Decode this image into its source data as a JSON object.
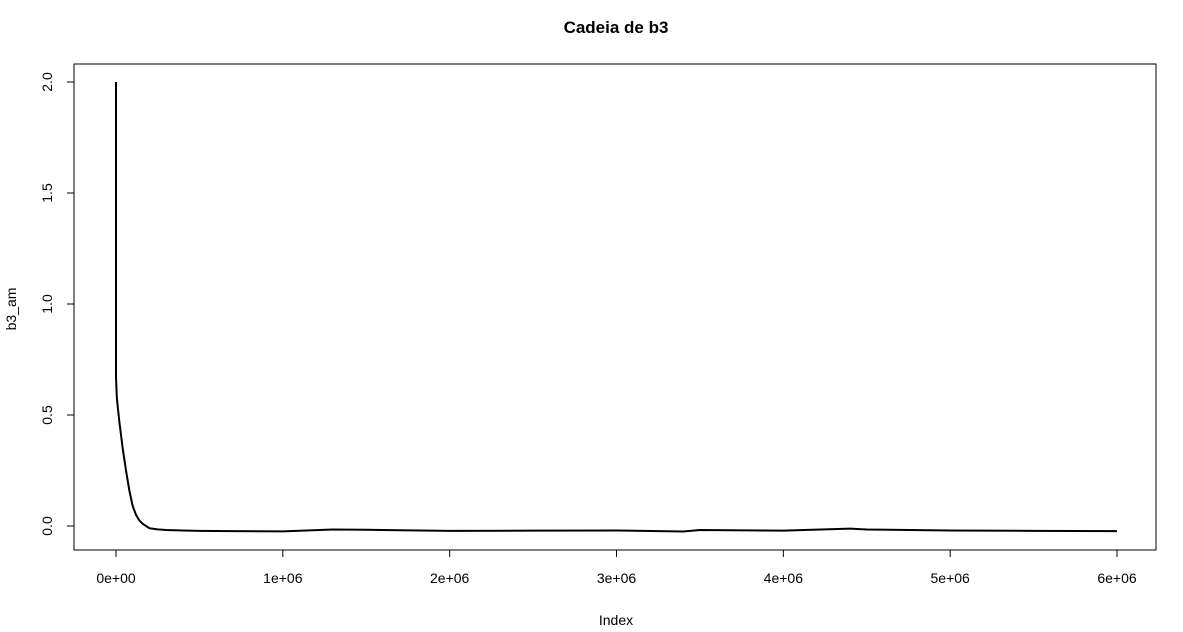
{
  "chart_data": {
    "type": "line",
    "title": "Cadeia de b3",
    "xlabel": "Index",
    "ylabel": "b3_am",
    "xlim": [
      0,
      6000000
    ],
    "ylim": [
      -0.1,
      2.1
    ],
    "x_ticks": [
      0,
      1000000,
      2000000,
      3000000,
      4000000,
      5000000,
      6000000
    ],
    "x_tick_labels": [
      "0e+00",
      "1e+06",
      "2e+06",
      "3e+06",
      "4e+06",
      "5e+06",
      "6e+06"
    ],
    "y_ticks": [
      0.0,
      0.5,
      1.0,
      1.5,
      2.0
    ],
    "y_tick_labels": [
      "0.0",
      "0.5",
      "1.0",
      "1.5",
      "2.0"
    ],
    "grid": false,
    "legend": "none",
    "line_color": "#000000",
    "series": [
      {
        "x": [
          0,
          1,
          5000,
          10000,
          20000,
          40000,
          60000,
          80000,
          100000,
          120000,
          140000,
          160000,
          180000,
          200000,
          250000,
          300000,
          400000,
          500000,
          700000,
          1000000,
          1300000,
          1500000,
          2000000,
          2500000,
          3000000,
          3400000,
          3500000,
          4000000,
          4400000,
          4500000,
          5000000,
          5500000,
          6000000
        ],
        "y": [
          2.0,
          0.67,
          0.58,
          0.54,
          0.47,
          0.35,
          0.25,
          0.16,
          0.09,
          0.05,
          0.025,
          0.01,
          0.0,
          -0.01,
          -0.015,
          -0.018,
          -0.02,
          -0.022,
          -0.023,
          -0.024,
          -0.016,
          -0.017,
          -0.022,
          -0.021,
          -0.02,
          -0.025,
          -0.018,
          -0.021,
          -0.012,
          -0.016,
          -0.02,
          -0.022,
          -0.023
        ]
      }
    ]
  }
}
